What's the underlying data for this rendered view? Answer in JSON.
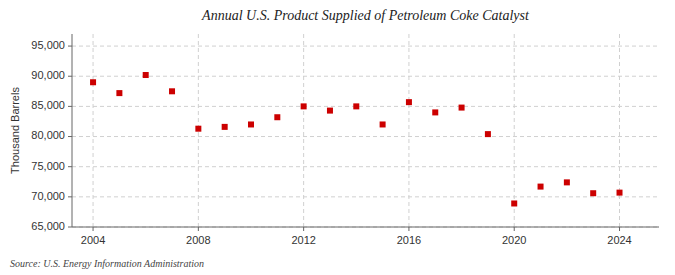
{
  "chart_data": {
    "type": "scatter",
    "title": "Annual U.S. Product Supplied of Petroleum Coke Catalyst",
    "ylabel": "Thousand Barrels",
    "source": "Source: U.S. Energy Information Administration",
    "x": [
      2004,
      2005,
      2006,
      2007,
      2008,
      2009,
      2010,
      2011,
      2012,
      2013,
      2014,
      2015,
      2016,
      2017,
      2018,
      2019,
      2020,
      2021,
      2022,
      2023,
      2024
    ],
    "values": [
      89000,
      87200,
      90200,
      87500,
      81300,
      81600,
      82000,
      83200,
      85000,
      84300,
      85000,
      82000,
      85700,
      84000,
      84800,
      80400,
      68900,
      71700,
      72400,
      70600,
      70700
    ],
    "color": "#cc0000",
    "marker": "square",
    "xlim": [
      2003.2,
      2025.5
    ],
    "xticks": [
      2004,
      2008,
      2012,
      2016,
      2020,
      2024
    ],
    "ylim": [
      65000,
      97000
    ],
    "yticks": [
      {
        "value": 65000,
        "label": "65,000"
      },
      {
        "value": 70000,
        "label": "70,000"
      },
      {
        "value": 75000,
        "label": "75,000"
      },
      {
        "value": 80000,
        "label": "80,000"
      },
      {
        "value": 85000,
        "label": "85,000"
      },
      {
        "value": 90000,
        "label": "90,000"
      },
      {
        "value": 95000,
        "label": "95,000"
      }
    ],
    "grid": true
  }
}
